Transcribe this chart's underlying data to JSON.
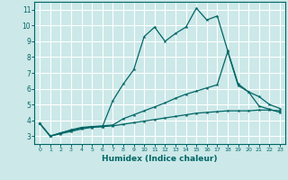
{
  "title": "",
  "xlabel": "Humidex (Indice chaleur)",
  "ylabel": "",
  "bg_color": "#cce8e8",
  "grid_color": "#ffffff",
  "line_color": "#006666",
  "xlim": [
    -0.5,
    23.5
  ],
  "ylim": [
    2.5,
    11.5
  ],
  "xticks": [
    0,
    1,
    2,
    3,
    4,
    5,
    6,
    7,
    8,
    9,
    10,
    11,
    12,
    13,
    14,
    15,
    16,
    17,
    18,
    19,
    20,
    21,
    22,
    23
  ],
  "yticks": [
    3,
    4,
    5,
    6,
    7,
    8,
    9,
    10,
    11
  ],
  "line1_x": [
    0,
    1,
    2,
    3,
    4,
    5,
    6,
    7,
    8,
    9,
    10,
    11,
    12,
    13,
    14,
    15,
    16,
    17,
    18,
    19,
    20,
    21,
    22,
    23
  ],
  "line1_y": [
    3.8,
    3.0,
    3.2,
    3.4,
    3.55,
    3.6,
    3.6,
    5.25,
    6.3,
    7.2,
    9.3,
    9.9,
    9.0,
    9.5,
    9.9,
    11.1,
    10.35,
    10.6,
    8.4,
    6.3,
    5.8,
    4.9,
    4.7,
    4.5
  ],
  "line2_x": [
    0,
    1,
    2,
    3,
    4,
    5,
    6,
    7,
    8,
    9,
    10,
    11,
    12,
    13,
    14,
    15,
    16,
    17,
    18,
    19,
    20,
    21,
    22,
    23
  ],
  "line2_y": [
    3.8,
    3.0,
    3.2,
    3.35,
    3.5,
    3.6,
    3.65,
    3.7,
    4.1,
    4.35,
    4.6,
    4.85,
    5.1,
    5.4,
    5.65,
    5.85,
    6.05,
    6.25,
    8.35,
    6.2,
    5.8,
    5.5,
    5.0,
    4.75
  ],
  "line3_x": [
    0,
    1,
    2,
    3,
    4,
    5,
    6,
    7,
    8,
    9,
    10,
    11,
    12,
    13,
    14,
    15,
    16,
    17,
    18,
    19,
    20,
    21,
    22,
    23
  ],
  "line3_y": [
    3.8,
    3.0,
    3.15,
    3.3,
    3.45,
    3.55,
    3.6,
    3.65,
    3.75,
    3.85,
    3.95,
    4.05,
    4.15,
    4.25,
    4.35,
    4.45,
    4.5,
    4.55,
    4.6,
    4.6,
    4.6,
    4.65,
    4.65,
    4.6
  ]
}
